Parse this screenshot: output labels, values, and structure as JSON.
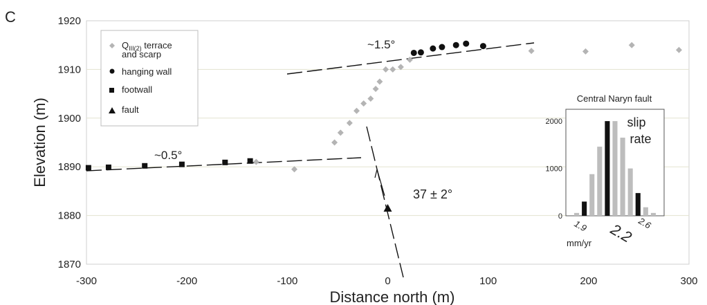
{
  "panel_label": "C",
  "chart_data": {
    "type": "scatter",
    "xlabel": "Distance north (m)",
    "ylabel": "Elevation (m)",
    "xlim": [
      -300,
      300
    ],
    "ylim": [
      1870,
      1920
    ],
    "x_ticks": [
      -300,
      -200,
      -100,
      0,
      100,
      200,
      300
    ],
    "y_ticks": [
      1870,
      1880,
      1890,
      1900,
      1910,
      1920
    ],
    "grid": "horizontal",
    "legend_position": "top-left",
    "legend": [
      {
        "label_main": "Q",
        "label_sub": "III(2)",
        "label_rest": " terrace",
        "label_line2": "and scarp",
        "marker": "diamond"
      },
      {
        "label": "hanging wall",
        "marker": "circle"
      },
      {
        "label": "footwall",
        "marker": "square"
      },
      {
        "label": "fault",
        "marker": "triangle"
      }
    ],
    "series": [
      {
        "name": "QIII(2) terrace and scarp",
        "marker": "diamond",
        "color": "#b4b4b4",
        "points": [
          [
            -131,
            1891
          ],
          [
            -93,
            1889.5
          ],
          [
            -53,
            1895
          ],
          [
            -47,
            1897
          ],
          [
            -38,
            1899
          ],
          [
            -31,
            1901.5
          ],
          [
            -24,
            1903
          ],
          [
            -17,
            1904
          ],
          [
            -12,
            1906
          ],
          [
            -8,
            1907.5
          ],
          [
            -2,
            1910
          ],
          [
            5,
            1910
          ],
          [
            13,
            1910.5
          ],
          [
            22,
            1912
          ],
          [
            143,
            1913.8
          ],
          [
            197,
            1913.7
          ],
          [
            243,
            1915
          ],
          [
            290,
            1914
          ]
        ]
      },
      {
        "name": "hanging wall",
        "marker": "circle",
        "color": "#111111",
        "points": [
          [
            26,
            1913.4
          ],
          [
            33,
            1913.5
          ],
          [
            45,
            1914.3
          ],
          [
            54,
            1914.6
          ],
          [
            68,
            1915
          ],
          [
            78,
            1915.3
          ],
          [
            95,
            1914.8
          ]
        ]
      },
      {
        "name": "footwall",
        "marker": "square",
        "color": "#111111",
        "points": [
          [
            -298,
            1889.8
          ],
          [
            -278,
            1889.9
          ],
          [
            -242,
            1890.2
          ],
          [
            -205,
            1890.5
          ],
          [
            -162,
            1890.9
          ],
          [
            -137,
            1891.2
          ]
        ]
      },
      {
        "name": "fault",
        "marker": "triangle",
        "color": "#111111",
        "points": [
          [
            0,
            1881.5
          ]
        ]
      }
    ],
    "annotations": [
      {
        "text": "~1.5°"
      },
      {
        "text": "~0.5°"
      },
      {
        "text": "37 ± 2°"
      }
    ],
    "inset": {
      "title": "Central Naryn fault",
      "label_line1": "slip",
      "label_line2": "rate",
      "type": "bar",
      "ylim": [
        0,
        2250
      ],
      "y_ticks": [
        0,
        1000,
        2000
      ],
      "x_tick_labels": [
        "1.9",
        "2.2",
        "2.6"
      ],
      "xlabel": "mm/yr",
      "values": [
        60,
        300,
        880,
        1460,
        2000,
        2000,
        1650,
        1000,
        480,
        180,
        60
      ],
      "colors": [
        "#bdbdbd",
        "#111111",
        "#bdbdbd",
        "#bdbdbd",
        "#111111",
        "#bdbdbd",
        "#bdbdbd",
        "#bdbdbd",
        "#111111",
        "#bdbdbd",
        "#bdbdbd"
      ]
    }
  }
}
